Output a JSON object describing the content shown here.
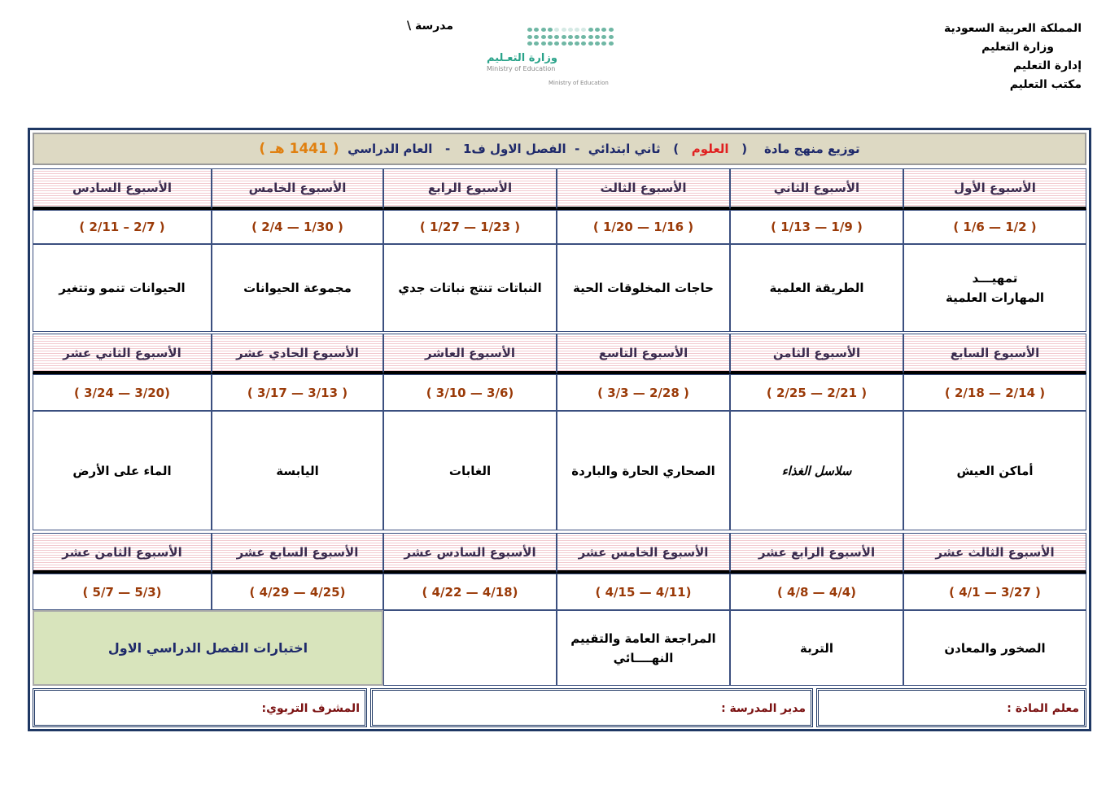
{
  "header": {
    "lines": [
      "المملكة العربية السعودية",
      "وزارة التعليم",
      "إدارة التعليم",
      "مكتب التعليم"
    ],
    "school": "مدرسة \\",
    "logo": {
      "arabic": "وزارة التعـليم",
      "english": "Ministry of Education",
      "english2": "Ministry of Education"
    }
  },
  "title": {
    "prefix": "توزيع منهج مادة",
    "open1": "(",
    "subject": "العلوم",
    "close1": ")",
    "grade": "ثاني ابتدائي",
    "sep1": "-",
    "term": "الفصل الاول ف1",
    "sep2": "-",
    "year_label": "العام الدراسي",
    "year": "( 1441 هـ )"
  },
  "colors": {
    "border": "#1f3864",
    "title_bg": "#ddd9c3",
    "date": "#9a3a08",
    "exam_bg": "#d8e4bc",
    "subject": "#e02020",
    "year": "#e08010"
  },
  "blocks": [
    {
      "weeks": [
        "الأسبوع الأول",
        "الأسبوع الثاني",
        "الأسبوع الثالث",
        "الأسبوع الرابع",
        "الأسبوع الخامس",
        "الأسبوع السادس"
      ],
      "dates": [
        "( 1/6  —  1/2 )",
        "( 1/13  —  1/9 )",
        "( 1/20  —  1/16 )",
        "( 1/27  —  1/23 )",
        "( 2/4  — 1/30 )",
        "( 2/11  – 2/7 )"
      ],
      "topics": [
        "تمهيـــد\nالمهارات العلمية",
        "الطريقة العلمية",
        "حاجات المخلوقات الحية",
        "النباتات تنتج نباتات جدي",
        "مجموعة الحيوانات",
        "الحيوانات تنمو وتتغير"
      ]
    },
    {
      "weeks": [
        "الأسبوع السابع",
        "الأسبوع الثامن",
        "الأسبوع التاسع",
        "الأسبوع العاشر",
        "الأسبوع الحادي عشر",
        "الأسبوع الثاني عشر"
      ],
      "dates": [
        "( 2/18  — 2/14 )",
        "( 2/25 — 2/21 )",
        "( 3/3  — 2/28  )",
        "( 3/10 — 3/6)",
        "( 3/17 — 3/13 )",
        "( 3/24 — 3/20)"
      ],
      "topics": [
        "أماكن العيش",
        "سلاسل الغذاء",
        "الصحاري الحارة والباردة",
        "الغابات",
        "اليابسة",
        "الماء على الأرض"
      ]
    },
    {
      "weeks": [
        "الأسبوع الثالث عشر",
        "الأسبوع الرابع عشر",
        "الأسبوع الخامس عشر",
        "الأسبوع السادس عشر",
        "الأسبوع السابع عشر",
        "الأسبوع الثامن عشر"
      ],
      "dates": [
        "( 4/1 — 3/27 )",
        "( 4/8 — 4/4)",
        "( 4/15 — 4/11)",
        "( 4/22 — 4/18)",
        "( 4/29 — 4/25)",
        "( 5/7 — 5/3)"
      ],
      "topics": [
        "الصخور والمعادن",
        "التربة",
        "المراجعة العامة والتقييم\nالنهــــائي",
        ""
      ],
      "exam": "اختبارات الفصل الدراسي الاول"
    }
  ],
  "footer": {
    "teacher": "معلم المادة :",
    "principal": "مدير المدرسة :",
    "supervisor": "المشرف التربوي:"
  }
}
